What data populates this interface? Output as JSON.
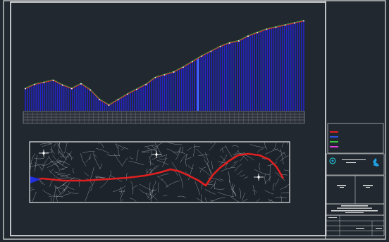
{
  "colors": {
    "background": "#212830",
    "frame": "#e8e8e8",
    "profile_fill": "#2323c8",
    "profile_line_red": "#e03030",
    "profile_line_green": "#40c040",
    "route": "#e02020",
    "streets": "#c9ccd2",
    "north_arrow": "#ffffff",
    "legend_title": "#ff4040"
  },
  "profile_chart": {
    "chart_data": {
      "type": "area",
      "x": [
        0,
        1,
        2,
        3,
        4,
        5,
        6,
        7,
        8,
        9,
        10,
        11,
        12,
        13,
        14,
        15,
        16,
        17,
        18,
        19,
        20,
        21,
        22,
        23,
        24,
        25,
        26,
        27,
        28,
        29,
        30
      ],
      "series": [
        {
          "values": [
            32,
            38,
            41,
            44,
            37,
            32,
            39,
            30,
            16,
            8,
            16,
            24,
            31,
            38,
            48,
            52,
            56,
            63,
            71,
            79,
            86,
            93,
            98,
            101,
            108,
            113,
            118,
            121,
            124,
            127,
            130
          ]
        }
      ],
      "ylim": [
        0,
        140
      ],
      "grid": false
    }
  },
  "legend": {
    "title": "",
    "items": [
      {
        "color": "#e02020",
        "text": ""
      },
      {
        "color": "#3050e0",
        "text": ""
      },
      {
        "color": "#40c040",
        "text": ""
      },
      {
        "color": "#e040e0",
        "text": ""
      }
    ]
  },
  "title_block": {
    "logo_icon": "company-logo-icon",
    "project_text": ""
  },
  "map": {
    "north_arrows": [
      "north-arrow-icon-1",
      "north-arrow-icon-2",
      "north-arrow-icon-3"
    ]
  }
}
